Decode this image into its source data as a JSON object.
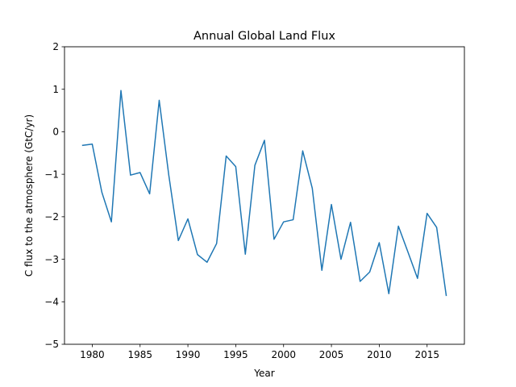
{
  "chart_data": {
    "type": "line",
    "title": "Annual Global Land Flux",
    "xlabel": "Year",
    "ylabel": "C flux to the atmosphere (GtC/yr)",
    "xlim": [
      1977.1,
      2018.9
    ],
    "ylim": [
      -5,
      2
    ],
    "xticks": [
      1980,
      1985,
      1990,
      1995,
      2000,
      2005,
      2010,
      2015
    ],
    "yticks": [
      -5,
      -4,
      -3,
      -2,
      -1,
      0,
      1,
      2
    ],
    "grid": false,
    "line_color": "#1f77b4",
    "series": [
      {
        "x": [
          1979,
          1980,
          1981,
          1982,
          1983,
          1984,
          1985,
          1986,
          1987,
          1988,
          1989,
          1990,
          1991,
          1992,
          1993,
          1994,
          1995,
          1996,
          1997,
          1998,
          1999,
          2000,
          2001,
          2002,
          2003,
          2004,
          2005,
          2006,
          2007,
          2008,
          2009,
          2010,
          2011,
          2012,
          2013,
          2014,
          2015,
          2016,
          2017
        ],
        "values": [
          -0.32,
          -0.29,
          -1.42,
          -2.12,
          0.97,
          -1.02,
          -0.96,
          -1.46,
          0.74,
          -1.02,
          -2.56,
          -2.05,
          -2.89,
          -3.07,
          -2.63,
          -0.57,
          -0.82,
          -2.88,
          -0.79,
          -0.2,
          -2.53,
          -2.12,
          -2.07,
          -0.45,
          -1.33,
          -3.26,
          -1.71,
          -3.0,
          -2.13,
          -3.52,
          -3.3,
          -2.61,
          -3.81,
          -2.22,
          -2.83,
          -3.45,
          -1.92,
          -2.25,
          -3.85
        ]
      }
    ]
  }
}
